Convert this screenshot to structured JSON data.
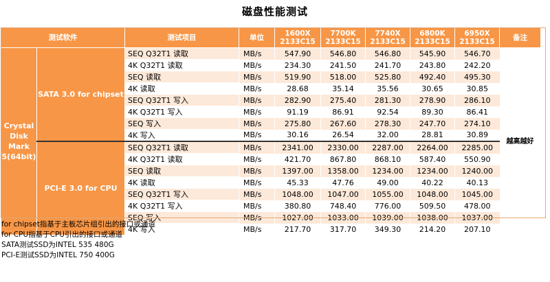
{
  "title": "磁盘性能测试",
  "header": {
    "software": "测试软件",
    "item": "测试项目",
    "unit": "单位",
    "cpus": [
      {
        "model": "1600X",
        "mem": "2133C15"
      },
      {
        "model": "7700K",
        "mem": "2133C15"
      },
      {
        "model": "7740X",
        "mem": "2133C15"
      },
      {
        "model": "6800K",
        "mem": "2133C15"
      },
      {
        "model": "6950X",
        "mem": "2133C15"
      }
    ],
    "remark": "备注"
  },
  "software_name": [
    "Crystal",
    "Disk",
    "Mark",
    "5(64bit)"
  ],
  "groups": [
    {
      "name": "SATA 3.0 for chipset",
      "rows": [
        {
          "item": "SEQ Q32T1 读取",
          "unit": "MB/s",
          "values": [
            "547.90",
            "546.80",
            "546.80",
            "545.90",
            "546.70"
          ]
        },
        {
          "item": "4K Q32T1 读取",
          "unit": "MB/s",
          "values": [
            "234.30",
            "241.50",
            "241.70",
            "243.80",
            "242.20"
          ]
        },
        {
          "item": "SEQ 读取",
          "unit": "MB/s",
          "values": [
            "519.90",
            "518.00",
            "525.80",
            "492.40",
            "495.30"
          ]
        },
        {
          "item": "4K 读取",
          "unit": "MB/s",
          "values": [
            "28.68",
            "35.14",
            "35.56",
            "30.65",
            "30.85"
          ]
        },
        {
          "item": "SEQ Q32T1 写入",
          "unit": "MB/s",
          "values": [
            "282.90",
            "275.40",
            "281.30",
            "278.90",
            "286.10"
          ]
        },
        {
          "item": "4K Q32T1 写入",
          "unit": "MB/s",
          "values": [
            "91.19",
            "86.91",
            "92.54",
            "89.30",
            "86.41"
          ]
        },
        {
          "item": "SEQ 写入",
          "unit": "MB/s",
          "values": [
            "275.80",
            "267.60",
            "278.30",
            "247.70",
            "274.10"
          ]
        },
        {
          "item": "4K 写入",
          "unit": "MB/s",
          "values": [
            "30.16",
            "26.54",
            "32.00",
            "28.81",
            "30.89"
          ]
        }
      ]
    },
    {
      "name": "PCI-E 3.0 for CPU",
      "rows": [
        {
          "item": "SEQ Q32T1 读取",
          "unit": "MB/s",
          "values": [
            "2341.00",
            "2330.00",
            "2287.00",
            "2264.00",
            "2285.00"
          ]
        },
        {
          "item": "4K Q32T1 读取",
          "unit": "MB/s",
          "values": [
            "421.70",
            "867.80",
            "868.10",
            "587.40",
            "550.90"
          ]
        },
        {
          "item": "SEQ 读取",
          "unit": "MB/s",
          "values": [
            "1397.00",
            "1358.00",
            "1234.00",
            "1234.00",
            "1240.00"
          ]
        },
        {
          "item": "4K 读取",
          "unit": "MB/s",
          "values": [
            "45.33",
            "47.76",
            "49.00",
            "40.22",
            "40.13"
          ]
        },
        {
          "item": "SEQ Q32T1 写入",
          "unit": "MB/s",
          "values": [
            "1048.00",
            "1047.00",
            "1055.00",
            "1048.00",
            "1045.00"
          ]
        },
        {
          "item": "4K Q32T1 写入",
          "unit": "MB/s",
          "values": [
            "380.80",
            "748.40",
            "776.00",
            "509.50",
            "478.00"
          ]
        },
        {
          "item": "SEQ 写入",
          "unit": "MB/s",
          "values": [
            "1027.00",
            "1033.00",
            "1039.00",
            "1038.00",
            "1037.00"
          ]
        },
        {
          "item": "4K 写入",
          "unit": "MB/s",
          "values": [
            "217.70",
            "317.70",
            "349.30",
            "214.20",
            "207.10"
          ]
        }
      ]
    }
  ],
  "remark_text": "越高越好",
  "notes": [
    "for chipset指基于主板芯片组引出的接口或通道",
    "for CPU指基于CPU引出的接口或通道",
    "SATA测试SSD为INTEL 535 480G",
    "PCI-E测试SSD为INTEL 750 400G"
  ],
  "colors": {
    "header_bg": "#f79646",
    "band": "#fde9d9"
  }
}
